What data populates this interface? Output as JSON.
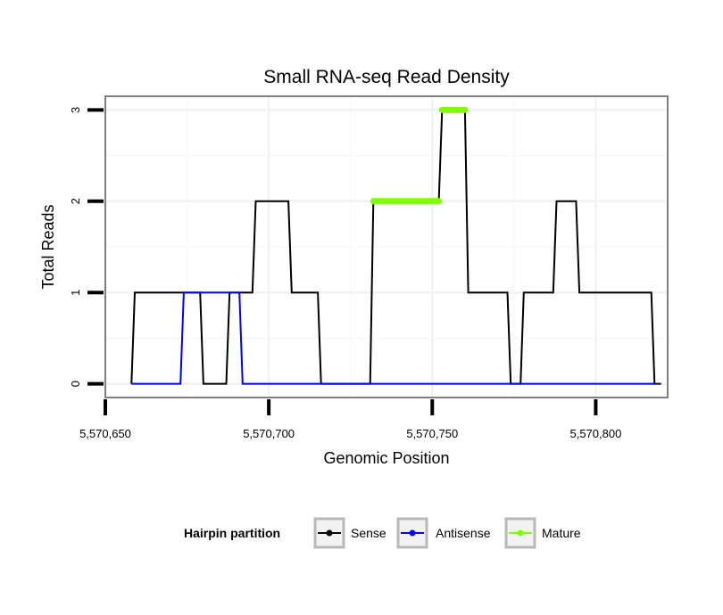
{
  "chart_data": {
    "type": "line",
    "title": "Small RNA-seq Read Density",
    "xlabel": "Genomic Position",
    "ylabel": "Total Reads",
    "xlim": [
      5570650,
      5570822
    ],
    "ylim": [
      -0.15,
      3.15
    ],
    "x_ticks": [
      5570650,
      5570700,
      5570750,
      5570800
    ],
    "x_tick_labels": [
      "5,570,650",
      "5,570,700",
      "5,570,750",
      "5,570,800"
    ],
    "y_ticks": [
      0,
      1,
      2,
      3
    ],
    "y_tick_labels": [
      "0",
      "1",
      "2",
      "3"
    ],
    "grid": true,
    "legend_title": "Hairpin partition",
    "legend_position": "bottom",
    "series": [
      {
        "name": "Sense",
        "color": "#000000",
        "points": [
          [
            5570658,
            0
          ],
          [
            5570659,
            1
          ],
          [
            5570679,
            1
          ],
          [
            5570680,
            0
          ],
          [
            5570687,
            0
          ],
          [
            5570688,
            1
          ],
          [
            5570695,
            1
          ],
          [
            5570696,
            2
          ],
          [
            5570706,
            2
          ],
          [
            5570707,
            1
          ],
          [
            5570715,
            1
          ],
          [
            5570716,
            0
          ],
          [
            5570731,
            0
          ],
          [
            5570732,
            2
          ],
          [
            5570752,
            2
          ],
          [
            5570753,
            3
          ],
          [
            5570760,
            3
          ],
          [
            5570761,
            1
          ],
          [
            5570773,
            1
          ],
          [
            5570774,
            0
          ],
          [
            5570777,
            0
          ],
          [
            5570778,
            1
          ],
          [
            5570787,
            1
          ],
          [
            5570788,
            2
          ],
          [
            5570794,
            2
          ],
          [
            5570795,
            1
          ],
          [
            5570817,
            1
          ],
          [
            5570818,
            0
          ],
          [
            5570820,
            0
          ]
        ]
      },
      {
        "name": "Antisense",
        "color": "#0000ff",
        "points": [
          [
            5570658,
            0
          ],
          [
            5570673,
            0
          ],
          [
            5570674,
            1
          ],
          [
            5570691,
            1
          ],
          [
            5570692,
            0
          ],
          [
            5570818,
            0
          ]
        ]
      },
      {
        "name": "Mature",
        "color": "#7fff00",
        "points": [
          [
            5570732,
            2
          ],
          [
            5570752,
            2
          ],
          [
            null,
            null
          ],
          [
            5570753,
            3
          ],
          [
            5570760,
            3
          ]
        ]
      }
    ]
  }
}
